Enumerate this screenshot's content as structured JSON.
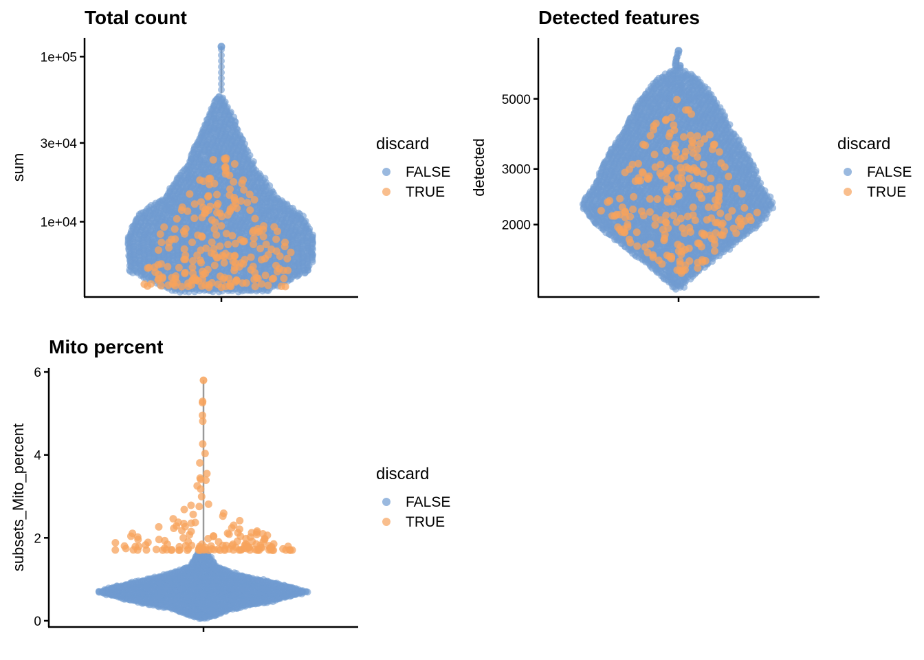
{
  "colors": {
    "false": "#6f9bd1",
    "true": "#f7a35c",
    "whisker": "#999999"
  },
  "chart_data": [
    {
      "type": "violin-beeswarm",
      "title": "Total count",
      "ylabel": "sum",
      "scale": "log",
      "ylim": [
        3500,
        130000
      ],
      "yticks": [
        10000,
        30000,
        100000
      ],
      "ytick_labels": [
        "1e+04",
        "3e+04",
        "1e+05"
      ],
      "legend": {
        "title": "discard",
        "entries": [
          "FALSE",
          "TRUE"
        ],
        "position": "right"
      },
      "false_range": [
        3800,
        115000
      ],
      "false_width_profile": [
        [
          3800,
          0.5
        ],
        [
          5000,
          0.98
        ],
        [
          8000,
          1.0
        ],
        [
          11000,
          0.88
        ],
        [
          14000,
          0.6
        ],
        [
          22000,
          0.35
        ],
        [
          35000,
          0.2
        ],
        [
          50000,
          0.08
        ],
        [
          60000,
          0.01
        ],
        [
          115000,
          0.01
        ]
      ],
      "true_range": [
        4000,
        25000
      ],
      "true_width_profile": [
        [
          4000,
          0.9
        ],
        [
          8000,
          0.75
        ],
        [
          12000,
          0.5
        ],
        [
          18000,
          0.25
        ],
        [
          25000,
          0.1
        ]
      ],
      "true_points": 230,
      "max_point": 115000,
      "whisker_range": [
        60000,
        115000
      ]
    },
    {
      "type": "violin-beeswarm",
      "title": "Detected features",
      "ylabel": "detected",
      "scale": "log",
      "ylim": [
        1180,
        7800
      ],
      "yticks": [
        2000,
        3000,
        5000
      ],
      "ytick_labels": [
        "2000",
        "3000",
        "5000"
      ],
      "legend": {
        "title": "discard",
        "entries": [
          "FALSE",
          "TRUE"
        ],
        "position": "right"
      },
      "false_range": [
        1250,
        7100
      ],
      "false_width_profile": [
        [
          1250,
          0.02
        ],
        [
          1400,
          0.2
        ],
        [
          1700,
          0.55
        ],
        [
          2000,
          0.85
        ],
        [
          2300,
          1.0
        ],
        [
          2700,
          0.85
        ],
        [
          3200,
          0.75
        ],
        [
          4000,
          0.55
        ],
        [
          5000,
          0.38
        ],
        [
          5800,
          0.2
        ],
        [
          6200,
          0.03
        ],
        [
          7100,
          0.01
        ]
      ],
      "true_range": [
        1400,
        5200
      ],
      "true_width_profile": [
        [
          1400,
          0.15
        ],
        [
          1800,
          0.6
        ],
        [
          2200,
          0.9
        ],
        [
          2800,
          0.7
        ],
        [
          3500,
          0.45
        ],
        [
          4300,
          0.25
        ],
        [
          5200,
          0.05
        ]
      ],
      "true_points": 230,
      "max_point": 7100,
      "whisker_range": [
        6200,
        7100
      ]
    },
    {
      "type": "violin-beeswarm",
      "title": "Mito percent",
      "ylabel": "subsets_Mito_percent",
      "scale": "linear",
      "ylim": [
        -0.15,
        6.1
      ],
      "yticks": [
        0,
        2,
        4,
        6
      ],
      "ytick_labels": [
        "0",
        "2",
        "4",
        "6"
      ],
      "legend": {
        "title": "discard",
        "entries": [
          "FALSE",
          "TRUE"
        ],
        "position": "right"
      },
      "false_range": [
        0.05,
        1.7
      ],
      "false_width_profile": [
        [
          0.05,
          0.02
        ],
        [
          0.3,
          0.3
        ],
        [
          0.5,
          0.7
        ],
        [
          0.7,
          1.0
        ],
        [
          0.9,
          0.7
        ],
        [
          1.1,
          0.35
        ],
        [
          1.3,
          0.12
        ],
        [
          1.6,
          0.05
        ],
        [
          1.7,
          0.01
        ]
      ],
      "true_range": [
        1.7,
        5.8
      ],
      "true_width_profile": [
        [
          1.7,
          1.0
        ],
        [
          2.0,
          0.9
        ],
        [
          2.3,
          0.45
        ],
        [
          2.8,
          0.12
        ],
        [
          3.4,
          0.05
        ],
        [
          4.5,
          0.02
        ],
        [
          5.8,
          0.01
        ]
      ],
      "true_points": 150,
      "max_point": 5.8,
      "whisker_range": [
        1.7,
        5.8
      ]
    }
  ]
}
